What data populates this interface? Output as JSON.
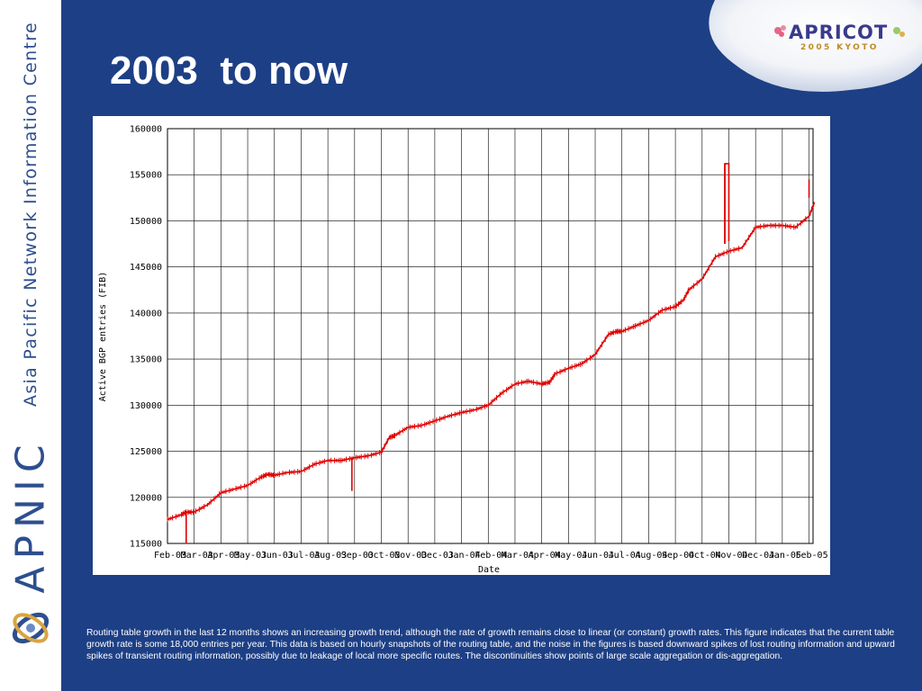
{
  "slide": {
    "title": "2003  to now",
    "caption": "Routing table growth in the last 12 months shows an increasing growth trend, although the rate of growth remains close to linear (or constant) growth rates. This figure indicates that the current table growth rate is some 18,000 entries per year. This data is based on hourly snapshots of the routing table, and the noise in the figures is based downward spikes of lost routing information and upward spikes of transient routing information, possibly due to leakage of local more specific routes. The discontinuities show points of large scale aggregation or dis-aggregation."
  },
  "sidebar": {
    "org_name": "Asia Pacific Network Information Centre",
    "brand": "APNIC"
  },
  "event_logo": {
    "name": "APRICOT",
    "subtitle": "2005 KYOTO"
  },
  "colors": {
    "background": "#1d3f85",
    "series": "#e00000",
    "brand_text": "#2d4f8e"
  },
  "chart_data": {
    "type": "line",
    "xlabel": "Date",
    "ylabel": "Active BGP entries (FIB)",
    "ylim": [
      115000,
      160000
    ],
    "yticks": [
      115000,
      120000,
      125000,
      130000,
      135000,
      140000,
      145000,
      150000,
      155000,
      160000
    ],
    "xticks": [
      "Feb-03",
      "Mar-03",
      "Apr-03",
      "May-03",
      "Jun-03",
      "Jul-03",
      "Aug-03",
      "Sep-03",
      "Oct-03",
      "Nov-03",
      "Dec-03",
      "Jan-04",
      "Feb-04",
      "Mar-04",
      "Apr-04",
      "May-04",
      "Jun-04",
      "Jul-04",
      "Aug-04",
      "Sep-04",
      "Oct-04",
      "Nov-04",
      "Dec-04",
      "Jan-05",
      "Feb-05"
    ],
    "grid": true,
    "legend": "none",
    "series": [
      {
        "x": [
          0,
          0.5,
          0.7,
          1.0,
          1.5,
          2,
          2.5,
          3,
          3.5,
          3.75,
          4.0,
          4.5,
          5,
          5.5,
          6,
          6.5,
          7,
          7.5,
          8,
          8.3,
          8.5,
          9,
          9.5,
          10,
          10.5,
          11,
          11.5,
          12,
          12.5,
          13,
          13.5,
          14,
          14.3,
          14.5,
          15,
          15.5,
          16,
          16.5,
          16.8,
          17,
          17.5,
          18,
          18.5,
          19,
          19.3,
          19.5,
          20,
          20.5,
          21,
          21.5,
          22,
          22.5,
          23,
          23.5,
          24,
          24.2
        ],
        "y": [
          117600,
          118100,
          118400,
          118400,
          119200,
          120500,
          120900,
          121300,
          122200,
          122500,
          122400,
          122700,
          122800,
          123600,
          124000,
          124000,
          124300,
          124500,
          124900,
          126500,
          126700,
          127600,
          127800,
          128300,
          128800,
          129200,
          129500,
          130000,
          131300,
          132300,
          132600,
          132300,
          132500,
          133400,
          134000,
          134500,
          135500,
          137700,
          138000,
          138000,
          138600,
          139200,
          140300,
          140700,
          141400,
          142500,
          143700,
          146100,
          146700,
          147100,
          149300,
          149500,
          149500,
          149300,
          150500,
          152000
        ]
      }
    ],
    "spikes": [
      {
        "x": 0.7,
        "low": 115000,
        "high": 118400
      },
      {
        "x": 6.9,
        "low": 120700,
        "high": 124200
      },
      {
        "x": 20.85,
        "low": 147500,
        "high": 156200
      },
      {
        "x": 24.0,
        "low": 152500,
        "high": 154500
      }
    ]
  }
}
